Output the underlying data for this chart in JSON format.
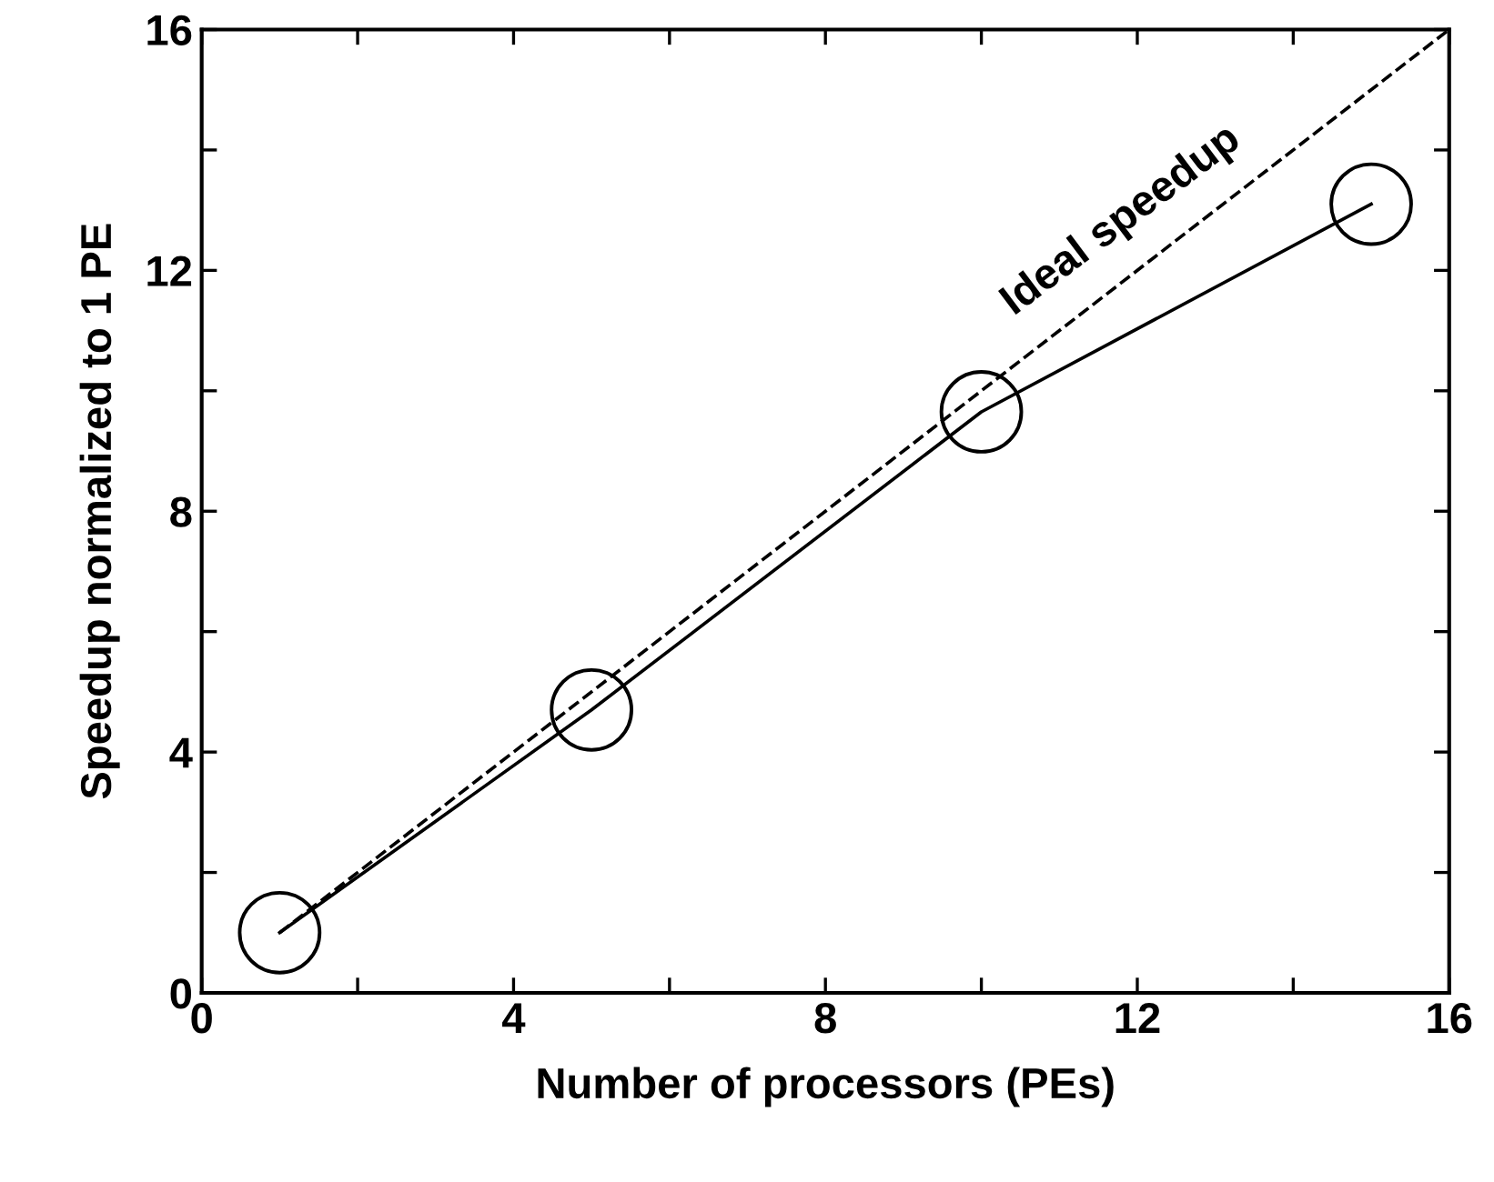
{
  "chart_data": {
    "type": "line",
    "xlabel": "Number of processors (PEs)",
    "ylabel": "Speedup normalized to 1 PE",
    "xlim": [
      0,
      16
    ],
    "ylim": [
      0,
      16
    ],
    "xticks": [
      0,
      {
        "value": 2,
        "label": null
      },
      4,
      {
        "value": 6,
        "label": null
      },
      8,
      {
        "value": 10,
        "label": null
      },
      12,
      {
        "value": 14,
        "label": null
      },
      16
    ],
    "yticks": [
      0,
      {
        "value": 2,
        "label": null
      },
      4,
      {
        "value": 6,
        "label": null
      },
      8,
      {
        "value": 10,
        "label": null
      },
      12,
      {
        "value": 14,
        "label": null
      },
      16
    ],
    "grid": false,
    "legend": false,
    "series": [
      {
        "x": [
          1,
          5,
          10,
          15
        ],
        "values": [
          1,
          4.7,
          9.65,
          13.1
        ],
        "color": "#000000",
        "marker": "circle",
        "line_style": "solid"
      },
      {
        "name": "Ideal speedup",
        "x": [
          1,
          16
        ],
        "values": [
          1,
          16
        ],
        "color": "#000000",
        "marker": "none",
        "line_style": "dashed"
      }
    ]
  }
}
